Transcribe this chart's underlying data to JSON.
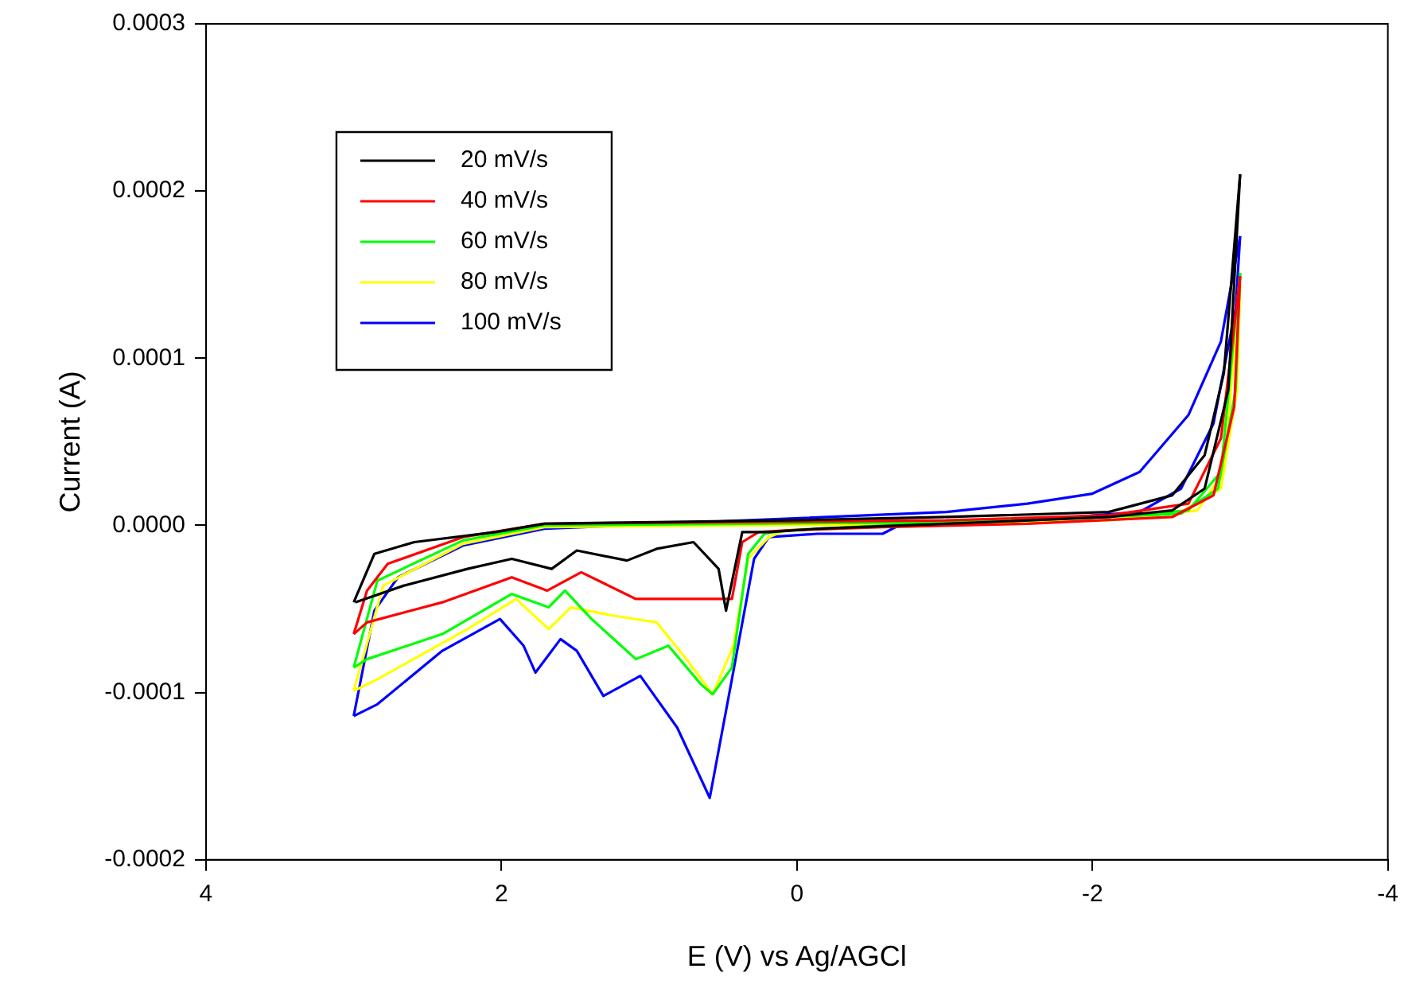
{
  "chart_data": {
    "type": "line",
    "xlabel": "E (V) vs Ag/AGCl",
    "ylabel": "Current (A)",
    "xlim": [
      4,
      -4
    ],
    "xticks": [
      4,
      2,
      0,
      -2,
      -4
    ],
    "ylim": [
      -0.0002,
      0.0003
    ],
    "yticks": [
      {
        "value": -0.0002,
        "label": "-0.0002"
      },
      {
        "value": -0.0001,
        "label": "-0.0001"
      },
      {
        "value": 0,
        "label": "0.0000"
      },
      {
        "value": 0.0001,
        "label": "0.0001"
      },
      {
        "value": 0.0002,
        "label": "0.0002"
      },
      {
        "value": 0.0003,
        "label": "0.0003"
      }
    ],
    "grid": false,
    "legend": "top left",
    "marker": "none",
    "line_style": "solid",
    "series": [
      {
        "name": "20 mV/s",
        "color": "#000000",
        "x": [
          3.0,
          2.86,
          2.59,
          2.04,
          1.71,
          0.95,
          0.08,
          -1.01,
          -2.11,
          -2.54,
          -2.76,
          -2.89,
          -3.0
        ],
        "values": [
          -4.6e-05,
          -1.7e-05,
          -1e-05,
          -4e-06,
          1e-06,
          2e-06,
          3e-06,
          5e-06,
          8e-06,
          1.8e-05,
          4.2e-05,
          9.1e-05,
          0.00021
        ]
      },
      {
        "color": "#000000",
        "x": [
          -3.0,
          -2.92,
          -2.76,
          -2.54,
          -2.11,
          -1.01,
          -0.14,
          0.19,
          0.37,
          0.48,
          0.53,
          0.7,
          0.95,
          1.15,
          1.49,
          1.66,
          1.93,
          2.23,
          2.66,
          2.99
        ],
        "values": [
          0.00021,
          8.1e-05,
          2.2e-05,
          9e-06,
          5e-06,
          1e-06,
          -2e-06,
          -4e-06,
          -4e-06,
          -5.1e-05,
          -2.6e-05,
          -1e-05,
          -1.4e-05,
          -2.1e-05,
          -1.5e-05,
          -2.6e-05,
          -2e-05,
          -2.6e-05,
          -3.6e-05,
          -4.6e-05
        ]
      },
      {
        "name": "40 mV/s",
        "color": "#ff0000",
        "x": [
          3.0,
          2.91,
          2.77,
          2.26,
          1.71,
          -1.01,
          -2.11,
          -2.65,
          -2.87,
          -3.0
        ],
        "values": [
          -6.5e-05,
          -3.9e-05,
          -2.3e-05,
          -7e-06,
          1e-06,
          3e-06,
          6e-06,
          1.3e-05,
          5.2e-05,
          0.000149
        ]
      },
      {
        "color": "#ff0000",
        "x": [
          -3.0,
          -2.96,
          -2.82,
          -2.54,
          -1.56,
          -0.58,
          0.08,
          0.26,
          0.37,
          0.44,
          0.76,
          1.09,
          1.46,
          1.69,
          1.93,
          2.4,
          2.91,
          3.0
        ],
        "values": [
          0.000149,
          7.1e-05,
          1.8e-05,
          5e-06,
          1e-06,
          -1e-06,
          -3e-06,
          -4e-06,
          -1e-05,
          -4.4e-05,
          -4.4e-05,
          -4.4e-05,
          -2.8e-05,
          -3.9e-05,
          -3.1e-05,
          -4.6e-05,
          -5.8e-05,
          -6.5e-05
        ]
      },
      {
        "name": "60 mV/s",
        "color": "#00ff00",
        "x": [
          3.0,
          2.84,
          2.26,
          1.71,
          -1.01,
          -2.11,
          -2.65,
          -2.87,
          -3.0
        ],
        "values": [
          -8.5e-05,
          -3.3e-05,
          -9e-06,
          0,
          2e-06,
          5e-06,
          9e-06,
          3.2e-05,
          0.000151
        ]
      },
      {
        "color": "#00ff00",
        "x": [
          -3.0,
          -2.97,
          -2.85,
          -2.6,
          -1.56,
          -0.58,
          0.08,
          0.22,
          0.33,
          0.44,
          0.57,
          0.65,
          0.87,
          1.09,
          1.39,
          1.57,
          1.68,
          1.93,
          2.4,
          2.91,
          3.0
        ],
        "values": [
          0.000151,
          8.1e-05,
          2.2e-05,
          7e-06,
          3e-06,
          0,
          -3e-06,
          -5e-06,
          -1.7e-05,
          -8.5e-05,
          -0.000101,
          -9.5e-05,
          -7.2e-05,
          -8e-05,
          -5.6e-05,
          -3.9e-05,
          -4.9e-05,
          -4.1e-05,
          -6.5e-05,
          -8e-05,
          -8.5e-05
        ]
      },
      {
        "name": "80 mV/s",
        "color": "#ffff00",
        "x": [
          3.0,
          2.8,
          2.26,
          1.71,
          -1.01,
          -2.11,
          -2.71,
          -2.89,
          -3.0
        ],
        "values": [
          -9.9e-05,
          -3.6e-05,
          -1.1e-05,
          -1e-06,
          1e-06,
          3e-06,
          9e-06,
          3.2e-05,
          0.000144
        ]
      },
      {
        "color": "#ffff00",
        "x": [
          -3.0,
          -2.98,
          -2.87,
          -2.6,
          -1.56,
          -0.58,
          0.08,
          0.19,
          0.33,
          0.43,
          0.57,
          0.73,
          0.95,
          1.24,
          1.53,
          1.68,
          1.9,
          2.23,
          2.84,
          3.0
        ],
        "values": [
          0.000144,
          8.1e-05,
          2.2e-05,
          8e-06,
          3e-06,
          0,
          -3e-06,
          -7e-06,
          -2e-05,
          -7.2e-05,
          -0.000101,
          -8.2e-05,
          -5.8e-05,
          -5.4e-05,
          -4.9e-05,
          -6.2e-05,
          -4.4e-05,
          -6.2e-05,
          -9.2e-05,
          -9.9e-05
        ]
      },
      {
        "name": "100 mV/s",
        "color": "#0000ff",
        "x": [
          3.0,
          2.86,
          2.7,
          2.26,
          1.71,
          0.08,
          -1.01,
          -1.56,
          -2.0,
          -2.32,
          -2.65,
          -2.87,
          -3.0
        ],
        "values": [
          -0.000114,
          -5.1e-05,
          -3.1e-05,
          -1.2e-05,
          -2e-06,
          4e-06,
          8e-06,
          1.3e-05,
          1.9e-05,
          3.2e-05,
          6.6e-05,
          0.00011,
          0.000173
        ]
      },
      {
        "color": "#0000ff",
        "x": [
          -3.0,
          -2.97,
          -2.82,
          -2.6,
          -2.32,
          -1.56,
          -0.69,
          -0.58,
          -0.14,
          0.19,
          0.29,
          0.44,
          0.59,
          0.81,
          1.06,
          1.31,
          1.49,
          1.6,
          1.77,
          1.85,
          2.01,
          2.4,
          2.84,
          3.0
        ],
        "values": [
          0.000173,
          0.00013,
          6.1e-05,
          2.2e-05,
          8e-06,
          3e-06,
          0,
          -5e-06,
          -5e-06,
          -7e-06,
          -2e-05,
          -9.2e-05,
          -0.000163,
          -0.000121,
          -9e-05,
          -0.000102,
          -7.5e-05,
          -6.8e-05,
          -8.8e-05,
          -7.2e-05,
          -5.6e-05,
          -7.5e-05,
          -0.000107,
          -0.000114
        ]
      }
    ]
  }
}
